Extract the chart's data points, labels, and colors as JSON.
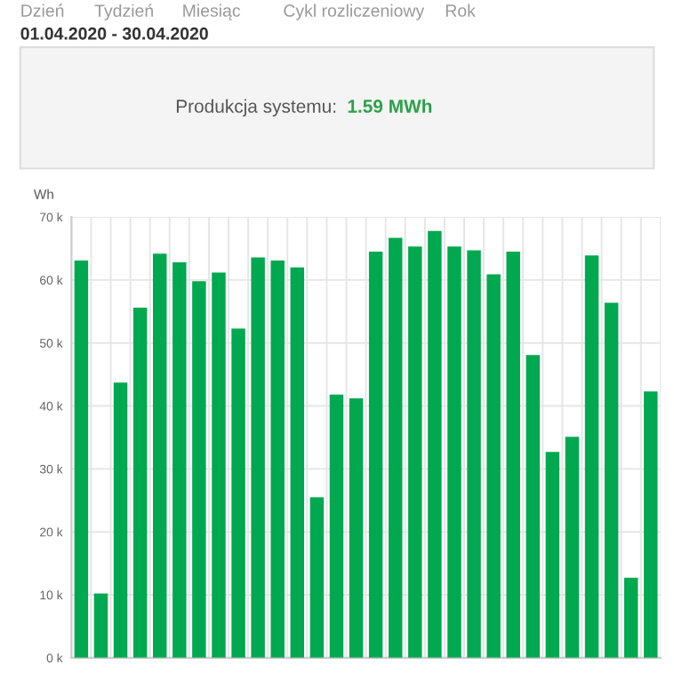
{
  "chart_data": {
    "type": "bar",
    "title": "Produkcja systemu: 1.59 MWh",
    "subtitle": "01.04.2020 - 30.04.2020",
    "annotations": [
      "Dzień",
      "Tydzień",
      "Miesiąc",
      "Cykl rozliczeniowy",
      "Rok"
    ],
    "ylabel": "Wh",
    "categories": [
      null,
      null,
      null,
      null,
      null,
      null,
      null,
      null,
      null,
      null,
      null,
      null,
      null,
      null,
      null,
      null,
      null,
      null,
      null,
      null,
      null,
      null,
      null,
      null,
      null,
      null,
      null,
      null,
      null,
      null
    ],
    "values": [
      63.1,
      10.2,
      43.7,
      55.6,
      64.2,
      62.8,
      59.8,
      61.2,
      52.3,
      63.6,
      63.1,
      62.0,
      25.5,
      41.8,
      41.2,
      64.5,
      66.7,
      65.3,
      67.8,
      65.3,
      64.7,
      60.9,
      64.5,
      48.1,
      32.7,
      35.1,
      63.9,
      56.4,
      12.7,
      42.3
    ],
    "color": "#00a84f",
    "ylim": [
      0,
      70
    ],
    "yticks": [
      {
        "value": 0,
        "label": "0 k"
      },
      {
        "value": 10,
        "label": "10 k"
      },
      {
        "value": 20,
        "label": "20 k"
      },
      {
        "value": 30,
        "label": "30 k"
      },
      {
        "value": 40,
        "label": "40 k"
      },
      {
        "value": 50,
        "label": "50 k"
      },
      {
        "value": 60,
        "label": "60 k"
      },
      {
        "value": 70,
        "label": "70 k"
      }
    ],
    "grid": true
  }
}
